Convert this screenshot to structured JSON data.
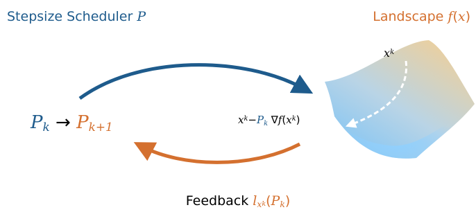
{
  "scheduler": {
    "color": "#1e5b8c",
    "parts": [
      {
        "text": "Stepsize Scheduler "
      },
      {
        "math": "P"
      }
    ]
  },
  "landscape": {
    "color": "#d4702f",
    "parts": [
      {
        "text": "Landscape  "
      },
      {
        "math": "f"
      },
      {
        "text": "("
      },
      {
        "math": "x"
      },
      {
        "text": ")"
      }
    ]
  },
  "update": {
    "parts": [
      {
        "math": "P",
        "color": "#1e5b8c"
      },
      {
        "sub": "k",
        "color": "#1e5b8c"
      },
      {
        "text": " → "
      },
      {
        "math": "P",
        "color": "#d4702f"
      },
      {
        "sub": "k+1",
        "color": "#d4702f"
      }
    ]
  },
  "point": {
    "parts": [
      {
        "math": "x"
      },
      {
        "sup": "k"
      }
    ]
  },
  "step": {
    "parts": [
      {
        "math": "x"
      },
      {
        "sup": "k"
      },
      {
        "text": "−"
      },
      {
        "math": "P",
        "color": "#1e5b8c"
      },
      {
        "sub": "k",
        "color": "#1e5b8c"
      },
      {
        "text": " ∇"
      },
      {
        "math": "f"
      },
      {
        "text": "("
      },
      {
        "math": "x"
      },
      {
        "sup": "k"
      },
      {
        "text": ")"
      }
    ]
  },
  "feedback": {
    "parts": [
      {
        "text": "Feedback  "
      },
      {
        "math": "l",
        "color": "#d4702f"
      },
      {
        "sub": "x",
        "color": "#d4702f"
      },
      {
        "subsup": "k",
        "color": "#d4702f"
      },
      {
        "text": "(",
        "color": "#d4702f"
      },
      {
        "math": "P",
        "color": "#d4702f"
      },
      {
        "sub": "k",
        "color": "#d4702f"
      },
      {
        "text": ")",
        "color": "#d4702f"
      }
    ]
  }
}
